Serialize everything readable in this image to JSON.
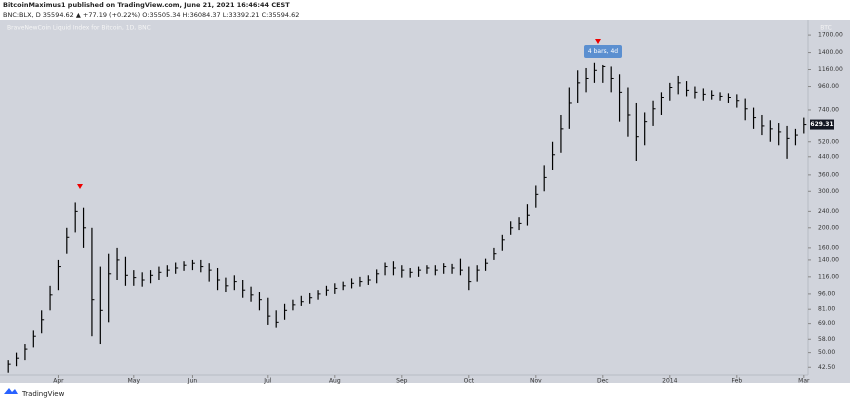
{
  "header": {
    "publisher": "BitcoinMaximus1 published on TradingView.com, June 21, 2021 16:46:44 CEST",
    "symbol_line": "BNC:BLX, D 35594.62 ▲ +77.19 (+0.22%) O:35505.34 H:36084.37 L:33392.21 C:35594.62"
  },
  "footer": {
    "brand": "TradingView"
  },
  "chart_data": {
    "type": "ohlc",
    "title": "BraveNewCoin Liquid Index for Bitcoin, 1D, BNC",
    "unit": "BTC",
    "annotation": "4 bars, 4d",
    "color": "#000000",
    "log_scale": true,
    "grid": false,
    "categories": [
      null,
      null,
      null,
      null,
      null,
      null,
      "Apr",
      null,
      null,
      null,
      null,
      null,
      null,
      null,
      null,
      "May",
      null,
      null,
      null,
      null,
      null,
      null,
      "Jun",
      null,
      null,
      null,
      null,
      null,
      null,
      null,
      null,
      "Jul",
      null,
      null,
      null,
      null,
      null,
      null,
      null,
      "Aug",
      null,
      null,
      null,
      null,
      null,
      null,
      null,
      "Sep",
      null,
      null,
      null,
      null,
      null,
      null,
      null,
      "Oct",
      null,
      null,
      null,
      null,
      null,
      null,
      null,
      "Nov",
      null,
      null,
      null,
      null,
      null,
      null,
      null,
      "Dec",
      null,
      null,
      null,
      null,
      null,
      null,
      null,
      "2014",
      null,
      null,
      null,
      null,
      null,
      null,
      null,
      "Feb",
      null,
      null,
      null,
      null,
      null,
      null,
      null,
      "Mar"
    ],
    "high": [
      46,
      50,
      55,
      64,
      80,
      105,
      140,
      200,
      265,
      250,
      200,
      130,
      150,
      160,
      145,
      125,
      122,
      125,
      130,
      132,
      136,
      138,
      140,
      140,
      135,
      128,
      115,
      118,
      112,
      104,
      98,
      92,
      80,
      86,
      90,
      94,
      97,
      100,
      105,
      108,
      110,
      114,
      116,
      118,
      126,
      136,
      138,
      132,
      128,
      130,
      132,
      132,
      135,
      134,
      142,
      130,
      132,
      142,
      160,
      185,
      215,
      225,
      260,
      320,
      400,
      520,
      700,
      950,
      1150,
      1180,
      1250,
      1220,
      1200,
      1100,
      950,
      800,
      720,
      820,
      900,
      1000,
      1080,
      1020,
      960,
      940,
      920,
      900,
      890,
      880,
      840,
      760,
      700,
      660,
      640,
      620,
      600,
      680
    ],
    "low": [
      40,
      43,
      46,
      53,
      62,
      80,
      100,
      150,
      190,
      160,
      60,
      55,
      70,
      112,
      105,
      105,
      104,
      108,
      112,
      116,
      120,
      124,
      125,
      122,
      110,
      100,
      98,
      100,
      92,
      88,
      80,
      68,
      66,
      72,
      80,
      84,
      86,
      90,
      94,
      96,
      100,
      102,
      104,
      106,
      108,
      118,
      118,
      115,
      115,
      116,
      120,
      118,
      120,
      120,
      118,
      100,
      110,
      124,
      140,
      155,
      185,
      195,
      205,
      250,
      300,
      380,
      460,
      600,
      800,
      900,
      1000,
      1000,
      900,
      650,
      550,
      420,
      500,
      620,
      700,
      820,
      880,
      860,
      840,
      820,
      830,
      820,
      800,
      760,
      660,
      600,
      560,
      520,
      500,
      430,
      500,
      570
    ],
    "close": [
      44,
      47,
      52,
      60,
      72,
      95,
      130,
      180,
      240,
      200,
      90,
      80,
      120,
      140,
      118,
      115,
      112,
      118,
      122,
      125,
      128,
      132,
      135,
      130,
      125,
      112,
      105,
      110,
      100,
      95,
      90,
      75,
      70,
      80,
      85,
      88,
      92,
      96,
      100,
      102,
      105,
      108,
      110,
      112,
      120,
      130,
      128,
      125,
      122,
      125,
      128,
      125,
      130,
      128,
      125,
      110,
      125,
      135,
      150,
      175,
      200,
      210,
      230,
      290,
      350,
      450,
      600,
      800,
      1000,
      1050,
      1150,
      1200,
      1050,
      900,
      700,
      550,
      650,
      750,
      850,
      950,
      1000,
      920,
      900,
      880,
      870,
      860,
      850,
      820,
      750,
      680,
      620,
      600,
      580,
      540,
      560,
      629.31
    ],
    "ylim": [
      39,
      2010
    ],
    "yticks": [
      {
        "value": 1700,
        "label": "1700.00"
      },
      {
        "value": 1400,
        "label": "1400.00"
      },
      {
        "value": 1160,
        "label": "1160.00"
      },
      {
        "value": 960,
        "label": "960.00"
      },
      {
        "value": 740,
        "label": "740.00"
      },
      {
        "value": 520,
        "label": "520.00"
      },
      {
        "value": 440,
        "label": "440.00"
      },
      {
        "value": 360,
        "label": "360.00"
      },
      {
        "value": 300,
        "label": "300.00"
      },
      {
        "value": 240,
        "label": "240.00"
      },
      {
        "value": 200,
        "label": "200.00"
      },
      {
        "value": 160,
        "label": "160.00"
      },
      {
        "value": 140,
        "label": "140.00"
      },
      {
        "value": 116,
        "label": "116.00"
      },
      {
        "value": 96,
        "label": "96.00"
      },
      {
        "value": 81,
        "label": "81.00"
      },
      {
        "value": 69,
        "label": "69.00"
      },
      {
        "value": 58,
        "label": "58.00"
      },
      {
        "value": 50,
        "label": "50.00"
      },
      {
        "value": 42.5,
        "label": "42.50"
      }
    ]
  }
}
